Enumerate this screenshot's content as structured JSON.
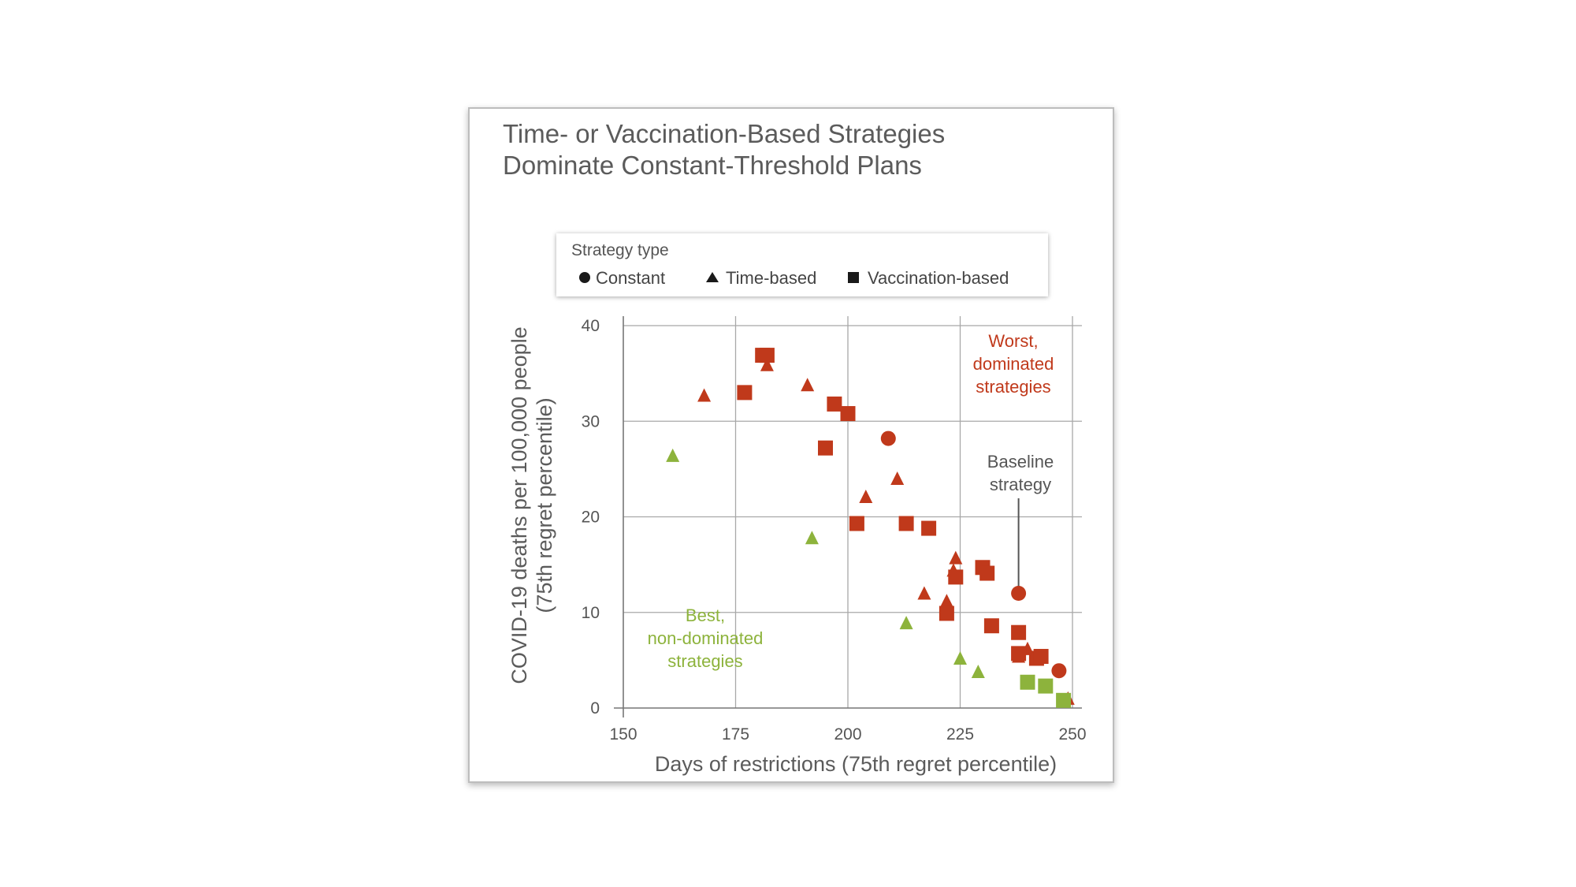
{
  "chart_data": {
    "type": "scatter",
    "title_lines": [
      "Time- or Vaccination-Based Strategies",
      "Dominate Constant-Threshold Plans"
    ],
    "xlabel": "Days of restrictions (75th regret percentile)",
    "ylabel_lines": [
      "COVID-19 deaths per 100,000 people",
      "(75th regret percentile)"
    ],
    "xlim": [
      150,
      250
    ],
    "ylim": [
      0,
      40
    ],
    "x_ticks": [
      150,
      175,
      200,
      225,
      250
    ],
    "y_ticks": [
      0,
      10,
      20,
      30,
      40
    ],
    "grid": true,
    "legend": {
      "title": "Strategy type",
      "position": "top",
      "entries": [
        {
          "label": "Constant",
          "shape": "circle"
        },
        {
          "label": "Time-based",
          "shape": "triangle"
        },
        {
          "label": "Vaccination-based",
          "shape": "square"
        }
      ]
    },
    "colors": {
      "dominated": "#c0391b",
      "non_dominated": "#8db33c",
      "ink": "#1a1a1a"
    },
    "annotations": {
      "worst": [
        "Worst,",
        "dominated",
        "strategies"
      ],
      "best": [
        "Best,",
        "non-dominated",
        "strategies"
      ],
      "baseline": [
        "Baseline",
        "strategy"
      ],
      "baseline_point": {
        "x": 238,
        "y": 12
      }
    },
    "points": [
      {
        "x": 209,
        "y": 28.2,
        "shape": "circle",
        "group": "dominated"
      },
      {
        "x": 238,
        "y": 12,
        "shape": "circle",
        "group": "dominated"
      },
      {
        "x": 247,
        "y": 3.9,
        "shape": "circle",
        "group": "dominated"
      },
      {
        "x": 168,
        "y": 32.6,
        "shape": "triangle",
        "group": "dominated"
      },
      {
        "x": 182,
        "y": 35.8,
        "shape": "triangle",
        "group": "dominated"
      },
      {
        "x": 191,
        "y": 33.7,
        "shape": "triangle",
        "group": "dominated"
      },
      {
        "x": 204,
        "y": 22,
        "shape": "triangle",
        "group": "dominated"
      },
      {
        "x": 211,
        "y": 23.9,
        "shape": "triangle",
        "group": "dominated"
      },
      {
        "x": 217,
        "y": 11.9,
        "shape": "triangle",
        "group": "dominated"
      },
      {
        "x": 222,
        "y": 11.1,
        "shape": "triangle",
        "group": "dominated"
      },
      {
        "x": 224,
        "y": 15.6,
        "shape": "triangle",
        "group": "dominated"
      },
      {
        "x": 223.5,
        "y": 14.3,
        "shape": "triangle",
        "group": "dominated"
      },
      {
        "x": 238,
        "y": 5.3,
        "shape": "triangle",
        "group": "dominated"
      },
      {
        "x": 240,
        "y": 6.1,
        "shape": "triangle",
        "group": "dominated"
      },
      {
        "x": 249,
        "y": 0.9,
        "shape": "triangle",
        "group": "dominated"
      },
      {
        "x": 181,
        "y": 36.9,
        "shape": "square",
        "group": "dominated"
      },
      {
        "x": 182,
        "y": 36.9,
        "shape": "square",
        "group": "dominated"
      },
      {
        "x": 177,
        "y": 33,
        "shape": "square",
        "group": "dominated"
      },
      {
        "x": 197,
        "y": 31.8,
        "shape": "square",
        "group": "dominated"
      },
      {
        "x": 200,
        "y": 30.8,
        "shape": "square",
        "group": "dominated"
      },
      {
        "x": 195,
        "y": 27.2,
        "shape": "square",
        "group": "dominated"
      },
      {
        "x": 202,
        "y": 19.3,
        "shape": "square",
        "group": "dominated"
      },
      {
        "x": 213,
        "y": 19.3,
        "shape": "square",
        "group": "dominated"
      },
      {
        "x": 218,
        "y": 18.8,
        "shape": "square",
        "group": "dominated"
      },
      {
        "x": 230,
        "y": 14.7,
        "shape": "square",
        "group": "dominated"
      },
      {
        "x": 231,
        "y": 14.1,
        "shape": "square",
        "group": "dominated"
      },
      {
        "x": 224,
        "y": 13.7,
        "shape": "square",
        "group": "dominated"
      },
      {
        "x": 222,
        "y": 9.9,
        "shape": "square",
        "group": "dominated"
      },
      {
        "x": 232,
        "y": 8.6,
        "shape": "square",
        "group": "dominated"
      },
      {
        "x": 238,
        "y": 7.9,
        "shape": "square",
        "group": "dominated"
      },
      {
        "x": 238,
        "y": 5.7,
        "shape": "square",
        "group": "dominated"
      },
      {
        "x": 242,
        "y": 5.2,
        "shape": "square",
        "group": "dominated"
      },
      {
        "x": 243,
        "y": 5.4,
        "shape": "square",
        "group": "dominated"
      },
      {
        "x": 161,
        "y": 26.3,
        "shape": "triangle",
        "group": "non_dominated"
      },
      {
        "x": 192,
        "y": 17.7,
        "shape": "triangle",
        "group": "non_dominated"
      },
      {
        "x": 213,
        "y": 8.8,
        "shape": "triangle",
        "group": "non_dominated"
      },
      {
        "x": 225,
        "y": 5.1,
        "shape": "triangle",
        "group": "non_dominated"
      },
      {
        "x": 229,
        "y": 3.7,
        "shape": "triangle",
        "group": "non_dominated"
      },
      {
        "x": 240,
        "y": 2.7,
        "shape": "square",
        "group": "non_dominated"
      },
      {
        "x": 244,
        "y": 2.3,
        "shape": "square",
        "group": "non_dominated"
      },
      {
        "x": 248,
        "y": 0.8,
        "shape": "square",
        "group": "non_dominated"
      }
    ]
  }
}
